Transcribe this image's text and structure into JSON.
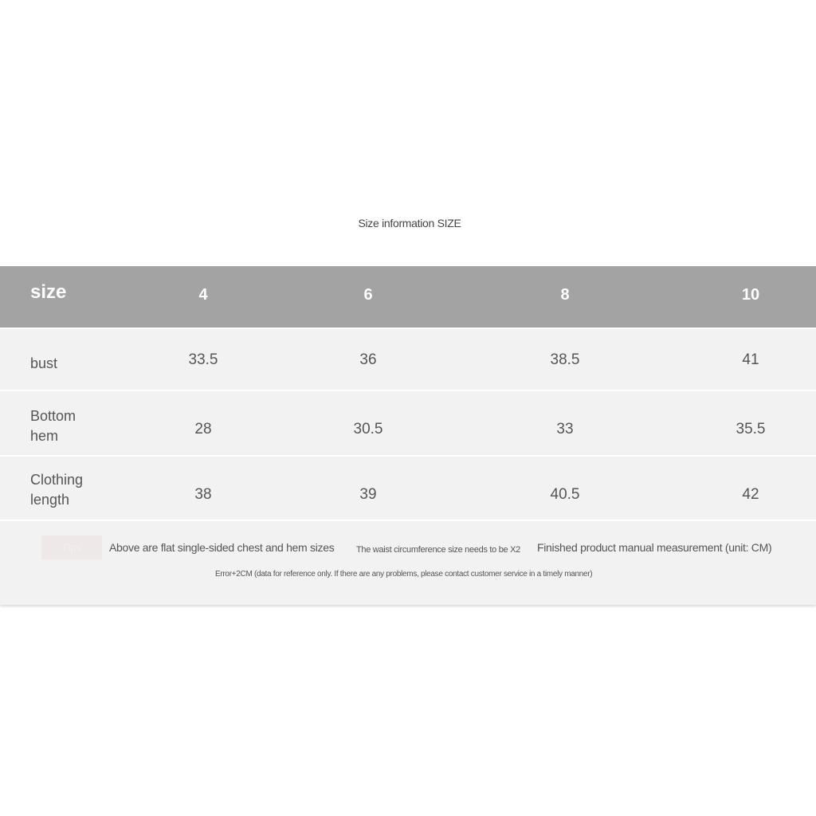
{
  "title": "Size information SIZE",
  "table": {
    "header": {
      "label": "size",
      "sizes": [
        "4",
        "6",
        "8",
        "10"
      ]
    },
    "rows": [
      {
        "label": "bust",
        "values": [
          "33.5",
          "36",
          "38.5",
          "41"
        ]
      },
      {
        "label": "Bottom hem",
        "values": [
          "28",
          "30.5",
          "33",
          "35.5"
        ]
      },
      {
        "label": "Clothing length",
        "values": [
          "38",
          "39",
          "40.5",
          "42"
        ]
      }
    ]
  },
  "footer": {
    "tip_label": "Tips",
    "note1": "Above are flat single-sided chest and hem sizes",
    "note2": "The waist circumference size needs to be X2",
    "note3": "Finished product manual measurement (unit: CM)",
    "note4": "Error+2CM (data for reference only. If there are any problems, please contact customer service in a timely manner)"
  },
  "colors": {
    "header_bg": "#a3a3a3",
    "row_bg": "#f2f2f2"
  }
}
